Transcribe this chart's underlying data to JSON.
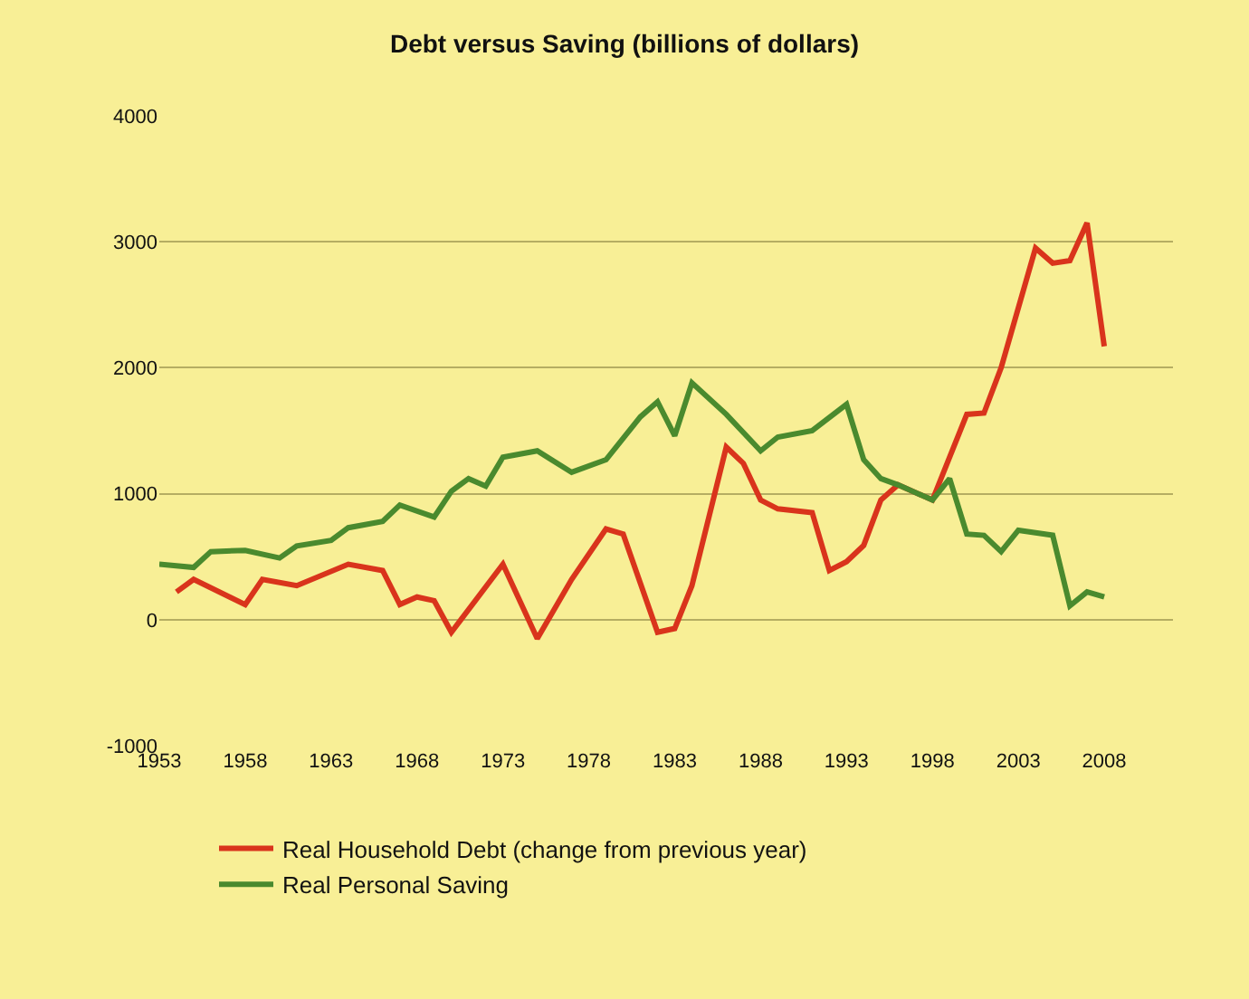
{
  "chart_data": {
    "type": "line",
    "title": "Debt versus Saving (billions of dollars)",
    "xlim": [
      1953,
      2012
    ],
    "xticks": [
      1953,
      1958,
      1963,
      1968,
      1973,
      1978,
      1983,
      1988,
      1993,
      1998,
      2003,
      2008
    ],
    "ylim": [
      -1000,
      4000
    ],
    "yticks": [
      -1000,
      0,
      1000,
      2000,
      3000,
      4000
    ],
    "grid": "y",
    "legend": "bottom",
    "marker": "none",
    "line_style": "solid",
    "series": [
      {
        "name": "Real Household Debt (change from previous year)",
        "color": "#d9341c",
        "x": [
          1954,
          1955,
          1958,
          1959,
          1961,
          1964,
          1966,
          1967,
          1968,
          1969,
          1970,
          1973,
          1975,
          1977,
          1979,
          1980,
          1982,
          1983,
          1984,
          1986,
          1987,
          1988,
          1989,
          1991,
          1992,
          1993,
          1994,
          1995,
          1996,
          1998,
          2000,
          2001,
          2002,
          2004,
          2005,
          2006,
          2007,
          2008
        ],
        "values": [
          220,
          320,
          120,
          320,
          270,
          440,
          390,
          120,
          180,
          150,
          -100,
          440,
          -150,
          320,
          720,
          680,
          -100,
          -70,
          270,
          1370,
          1240,
          950,
          880,
          850,
          390,
          460,
          590,
          950,
          1070,
          950,
          1630,
          1640,
          2000,
          2950,
          2830,
          2850,
          3150,
          2170
        ]
      },
      {
        "name": "Real Personal Saving",
        "color": "#4a8a2e",
        "x": [
          1953,
          1955,
          1956,
          1958,
          1960,
          1961,
          1963,
          1964,
          1966,
          1967,
          1969,
          1970,
          1971,
          1972,
          1973,
          1975,
          1977,
          1979,
          1981,
          1982,
          1983,
          1984,
          1986,
          1988,
          1989,
          1991,
          1993,
          1994,
          1995,
          1996,
          1998,
          1999,
          2000,
          2001,
          2002,
          2003,
          2005,
          2006,
          2007,
          2008
        ],
        "values": [
          440,
          415,
          540,
          550,
          490,
          585,
          630,
          730,
          780,
          910,
          815,
          1020,
          1120,
          1060,
          1290,
          1340,
          1170,
          1270,
          1610,
          1730,
          1460,
          1880,
          1630,
          1340,
          1450,
          1500,
          1710,
          1270,
          1120,
          1070,
          950,
          1120,
          680,
          670,
          540,
          710,
          670,
          110,
          220,
          180
        ]
      }
    ]
  }
}
